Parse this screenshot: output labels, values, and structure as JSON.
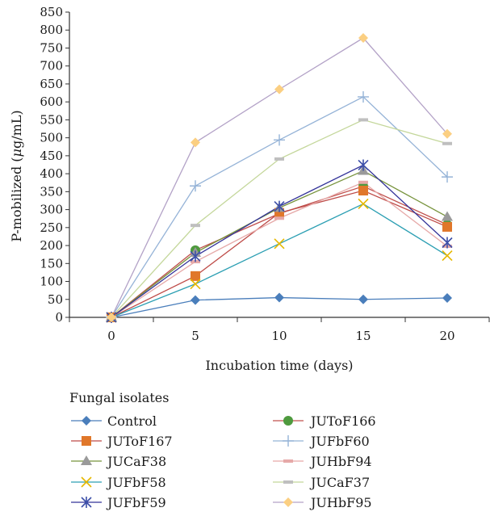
{
  "chart_data": {
    "type": "line",
    "xlabel": "Incubation time (days)",
    "ylabel_prefix": "P-mobilized (",
    "ylabel_unit_mu": "μ",
    "ylabel_suffix": "g/mL)",
    "xlim": [
      -2.5,
      22.5
    ],
    "ylim": [
      0,
      850
    ],
    "x_ticks": [
      0,
      5,
      10,
      15,
      20
    ],
    "y_ticks": [
      0,
      50,
      100,
      150,
      200,
      250,
      300,
      350,
      400,
      450,
      500,
      550,
      600,
      650,
      700,
      750,
      800,
      850
    ],
    "grid": false,
    "legend_title": "Fungal isolates",
    "legend_position": "bottom",
    "x": [
      0,
      5,
      10,
      15,
      20
    ],
    "series": [
      {
        "name": "Control",
        "color": "#4a7ebb",
        "marker": "diamond",
        "values": [
          0,
          48,
          55,
          50,
          54
        ]
      },
      {
        "name": "JUToF166",
        "color": "#c0504d",
        "mcolor": "#4e9a3e",
        "marker": "circle",
        "values": [
          0,
          187,
          289,
          365,
          258
        ]
      },
      {
        "name": "JUToF167",
        "color": "#be4b48",
        "mcolor": "#e0772a",
        "marker": "square",
        "values": [
          0,
          115,
          291,
          353,
          252
        ]
      },
      {
        "name": "JUFbF60",
        "color": "#95b3d7",
        "marker": "plus",
        "values": [
          0,
          366,
          494,
          614,
          391
        ]
      },
      {
        "name": "JUCaF38",
        "color": "#77933c",
        "mcolor": "#9a9a9a",
        "marker": "triangle",
        "values": [
          0,
          180,
          305,
          408,
          280
        ]
      },
      {
        "name": "JUHbF94",
        "color": "#e6a9a8",
        "marker": "dash",
        "values": [
          0,
          155,
          276,
          376,
          198
        ]
      },
      {
        "name": "JUFbF58",
        "color": "#2c9fb3",
        "mcolor": "#e6b800",
        "marker": "x",
        "values": [
          0,
          93,
          205,
          316,
          172
        ]
      },
      {
        "name": "JUCaF37",
        "color": "#c4d79b",
        "mcolor": "#bfbfbf",
        "marker": "dash",
        "values": [
          0,
          256,
          441,
          550,
          484
        ]
      },
      {
        "name": "JUFbF59",
        "color": "#333399",
        "mcolor": "#3c4fa8",
        "marker": "star",
        "values": [
          0,
          170,
          309,
          424,
          208
        ]
      },
      {
        "name": "JUHbF95",
        "color": "#b3a2c7",
        "mcolor": "#fbcf82",
        "marker": "diamond",
        "values": [
          0,
          487,
          635,
          778,
          511
        ]
      }
    ]
  }
}
